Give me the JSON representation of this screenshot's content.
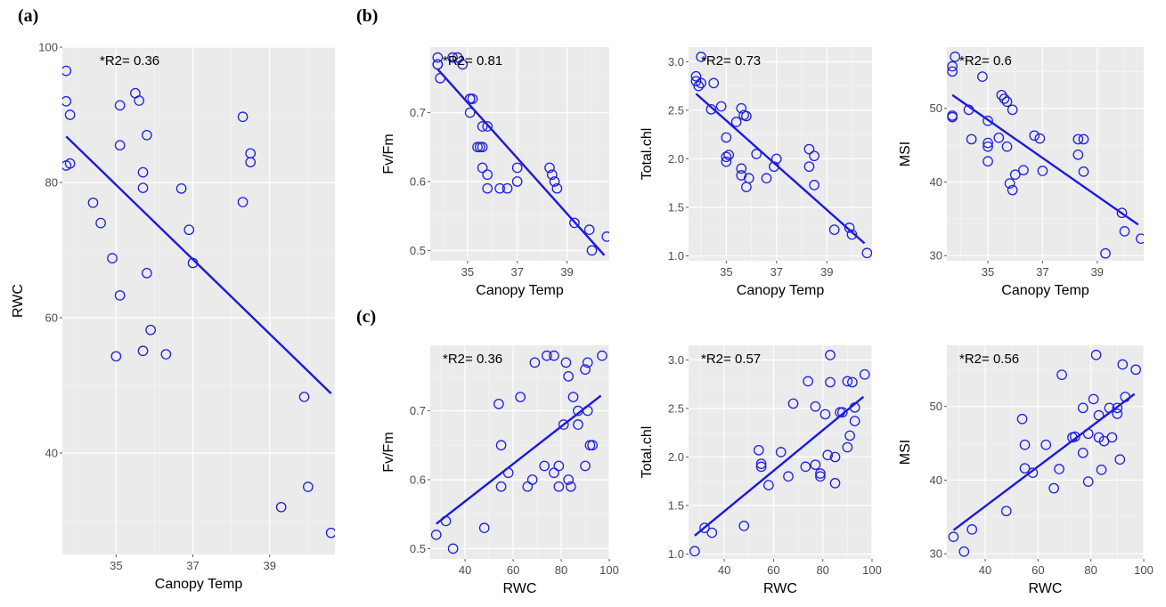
{
  "panel_labels": [
    "(a)",
    "(b)",
    "(c)"
  ],
  "style": {
    "point_color": "#2020dd",
    "line_color": "#1a1ae0",
    "panel_bg": "#ebebeb"
  },
  "chart_data": [
    {
      "id": "a",
      "type": "scatter",
      "xlabel": "Canopy Temp",
      "ylabel": "RWC",
      "annotation": "*R2= 0.36",
      "xlim": [
        33.6,
        40.7
      ],
      "ylim": [
        25,
        100
      ],
      "xticks": [
        35,
        37,
        39
      ],
      "yticks": [
        40,
        60,
        80,
        100
      ],
      "points": [
        [
          33.7,
          96.5
        ],
        [
          33.7,
          92
        ],
        [
          33.8,
          90
        ],
        [
          33.7,
          82.5
        ],
        [
          33.8,
          82.8
        ],
        [
          34.4,
          77
        ],
        [
          34.6,
          74
        ],
        [
          34.9,
          68.8
        ],
        [
          35.1,
          91.4
        ],
        [
          35.1,
          85.5
        ],
        [
          35.1,
          63.3
        ],
        [
          35.0,
          54.3
        ],
        [
          35.5,
          93.2
        ],
        [
          35.6,
          92.1
        ],
        [
          35.7,
          81.5
        ],
        [
          35.7,
          79.2
        ],
        [
          35.8,
          87
        ],
        [
          35.8,
          66.6
        ],
        [
          35.9,
          58.2
        ],
        [
          35.7,
          55.1
        ],
        [
          36.3,
          54.6
        ],
        [
          36.7,
          79.1
        ],
        [
          36.9,
          73
        ],
        [
          37.0,
          68.1
        ],
        [
          38.3,
          89.7
        ],
        [
          38.3,
          77.1
        ],
        [
          38.5,
          84.3
        ],
        [
          38.5,
          83
        ],
        [
          39.3,
          32
        ],
        [
          39.9,
          48.3
        ],
        [
          40.0,
          35
        ],
        [
          40.6,
          28.2
        ]
      ],
      "fit": [
        [
          33.7,
          86.8
        ],
        [
          40.6,
          48.8
        ]
      ]
    },
    {
      "id": "b1",
      "type": "scatter",
      "xlabel": "Canopy Temp",
      "ylabel": "Fv/Fm",
      "annotation": "*R2= 0.81",
      "xlim": [
        33.5,
        40.7
      ],
      "ylim": [
        0.485,
        0.795
      ],
      "xticks": [
        35,
        37,
        39
      ],
      "yticks": [
        0.5,
        0.6,
        0.7
      ],
      "points": [
        [
          33.8,
          0.78
        ],
        [
          33.8,
          0.77
        ],
        [
          33.8,
          0.77
        ],
        [
          33.9,
          0.75
        ],
        [
          34.4,
          0.78
        ],
        [
          34.6,
          0.78
        ],
        [
          34.8,
          0.77
        ],
        [
          35.1,
          0.72
        ],
        [
          35.1,
          0.72
        ],
        [
          35.1,
          0.7
        ],
        [
          35.2,
          0.72
        ],
        [
          35.4,
          0.65
        ],
        [
          35.5,
          0.65
        ],
        [
          35.6,
          0.65
        ],
        [
          35.6,
          0.68
        ],
        [
          35.6,
          0.62
        ],
        [
          35.8,
          0.68
        ],
        [
          35.8,
          0.61
        ],
        [
          35.8,
          0.59
        ],
        [
          36.3,
          0.59
        ],
        [
          36.6,
          0.59
        ],
        [
          37.0,
          0.62
        ],
        [
          37.0,
          0.6
        ],
        [
          38.3,
          0.62
        ],
        [
          38.4,
          0.61
        ],
        [
          38.5,
          0.6
        ],
        [
          38.6,
          0.59
        ],
        [
          39.3,
          0.54
        ],
        [
          39.9,
          0.53
        ],
        [
          40.0,
          0.5
        ],
        [
          40.6,
          0.52
        ]
      ],
      "fit": [
        [
          33.8,
          0.763
        ],
        [
          40.5,
          0.493
        ]
      ]
    },
    {
      "id": "b2",
      "type": "scatter",
      "xlabel": "Canopy Temp",
      "ylabel": "Total.chl",
      "annotation": "*R2= 0.73",
      "xlim": [
        33.5,
        40.8
      ],
      "ylim": [
        0.95,
        3.15
      ],
      "xticks": [
        35,
        37,
        39
      ],
      "yticks": [
        1.0,
        1.5,
        2.0,
        2.5,
        3.0
      ],
      "points": [
        [
          33.8,
          2.85
        ],
        [
          33.8,
          2.8
        ],
        [
          33.9,
          2.75
        ],
        [
          34.0,
          3.05
        ],
        [
          34.0,
          2.78
        ],
        [
          34.4,
          2.51
        ],
        [
          34.5,
          2.78
        ],
        [
          34.8,
          2.54
        ],
        [
          35.0,
          2.22
        ],
        [
          35.0,
          2.02
        ],
        [
          35.0,
          1.97
        ],
        [
          35.1,
          2.04
        ],
        [
          35.4,
          2.38
        ],
        [
          35.6,
          2.52
        ],
        [
          35.6,
          1.9
        ],
        [
          35.6,
          1.83
        ],
        [
          35.7,
          2.45
        ],
        [
          35.8,
          2.44
        ],
        [
          35.8,
          1.71
        ],
        [
          35.9,
          1.8
        ],
        [
          36.2,
          2.05
        ],
        [
          36.6,
          1.8
        ],
        [
          36.9,
          1.92
        ],
        [
          37.0,
          2.0
        ],
        [
          38.3,
          2.1
        ],
        [
          38.3,
          1.92
        ],
        [
          38.5,
          2.03
        ],
        [
          38.5,
          1.73
        ],
        [
          39.3,
          1.27
        ],
        [
          39.9,
          1.29
        ],
        [
          40.0,
          1.22
        ],
        [
          40.6,
          1.03
        ]
      ],
      "fit": [
        [
          33.8,
          2.67
        ],
        [
          40.5,
          1.13
        ]
      ]
    },
    {
      "id": "b3",
      "type": "scatter",
      "xlabel": "Canopy Temp",
      "ylabel": "MSI",
      "annotation": "*R2= 0.6",
      "xlim": [
        33.5,
        40.7
      ],
      "ylim": [
        29.3,
        58.3
      ],
      "xticks": [
        35,
        37,
        39
      ],
      "yticks": [
        30,
        40,
        50
      ],
      "points": [
        [
          33.7,
          55.7
        ],
        [
          33.7,
          55
        ],
        [
          33.8,
          57
        ],
        [
          33.7,
          49
        ],
        [
          33.7,
          48.8
        ],
        [
          34.3,
          49.8
        ],
        [
          34.4,
          45.8
        ],
        [
          34.8,
          54.3
        ],
        [
          35.0,
          48.3
        ],
        [
          35.0,
          45.3
        ],
        [
          35.0,
          44.8
        ],
        [
          35.0,
          42.8
        ],
        [
          35.4,
          46
        ],
        [
          35.5,
          51.8
        ],
        [
          35.6,
          51.3
        ],
        [
          35.7,
          50.9
        ],
        [
          35.7,
          44.8
        ],
        [
          35.8,
          39.8
        ],
        [
          35.9,
          38.9
        ],
        [
          35.9,
          49.8
        ],
        [
          36.0,
          41
        ],
        [
          36.3,
          41.6
        ],
        [
          36.7,
          46.3
        ],
        [
          37.0,
          41.5
        ],
        [
          36.9,
          45.9
        ],
        [
          38.3,
          43.7
        ],
        [
          38.3,
          45.8
        ],
        [
          38.5,
          45.8
        ],
        [
          38.5,
          41.4
        ],
        [
          39.3,
          30.3
        ],
        [
          39.9,
          35.8
        ],
        [
          40.0,
          33.3
        ],
        [
          40.6,
          32.3
        ]
      ],
      "fit": [
        [
          33.7,
          51.8
        ],
        [
          40.5,
          34.2
        ]
      ]
    },
    {
      "id": "c1",
      "type": "scatter",
      "xlabel": "RWC",
      "ylabel": "Fv/Fm",
      "annotation": "*R2= 0.36",
      "xlim": [
        25.5,
        100
      ],
      "ylim": [
        0.485,
        0.795
      ],
      "xticks": [
        40,
        60,
        80,
        100
      ],
      "yticks": [
        0.5,
        0.6,
        0.7
      ],
      "points": [
        [
          28,
          0.52
        ],
        [
          32,
          0.54
        ],
        [
          35,
          0.5
        ],
        [
          48,
          0.53
        ],
        [
          54,
          0.71
        ],
        [
          55,
          0.65
        ],
        [
          55,
          0.59
        ],
        [
          58,
          0.61
        ],
        [
          63,
          0.72
        ],
        [
          66,
          0.59
        ],
        [
          68,
          0.6
        ],
        [
          69,
          0.77
        ],
        [
          73,
          0.62
        ],
        [
          74,
          0.78
        ],
        [
          77,
          0.78
        ],
        [
          77,
          0.61
        ],
        [
          79,
          0.62
        ],
        [
          79,
          0.59
        ],
        [
          81,
          0.68
        ],
        [
          82,
          0.77
        ],
        [
          83,
          0.75
        ],
        [
          83,
          0.6
        ],
        [
          84,
          0.59
        ],
        [
          85,
          0.72
        ],
        [
          87,
          0.7
        ],
        [
          87,
          0.68
        ],
        [
          90,
          0.62
        ],
        [
          90,
          0.76
        ],
        [
          91,
          0.7
        ],
        [
          91,
          0.77
        ],
        [
          92,
          0.65
        ],
        [
          93,
          0.65
        ],
        [
          97,
          0.78
        ]
      ],
      "fit": [
        [
          28,
          0.536
        ],
        [
          96.5,
          0.722
        ]
      ]
    },
    {
      "id": "c2",
      "type": "scatter",
      "xlabel": "RWC",
      "ylabel": "Total.chl",
      "annotation": "*R2= 0.57",
      "xlim": [
        25.5,
        100
      ],
      "ylim": [
        0.95,
        3.15
      ],
      "xticks": [
        40,
        60,
        80,
        100
      ],
      "yticks": [
        1.0,
        1.5,
        2.0,
        2.5,
        3.0
      ],
      "points": [
        [
          28,
          1.03
        ],
        [
          32,
          1.27
        ],
        [
          35,
          1.22
        ],
        [
          48,
          1.29
        ],
        [
          54,
          2.07
        ],
        [
          55,
          1.93
        ],
        [
          55,
          1.9
        ],
        [
          58,
          1.71
        ],
        [
          63,
          2.05
        ],
        [
          66,
          1.8
        ],
        [
          68,
          2.55
        ],
        [
          73,
          1.9
        ],
        [
          74,
          2.78
        ],
        [
          77,
          2.52
        ],
        [
          77,
          1.92
        ],
        [
          79,
          1.83
        ],
        [
          79,
          1.8
        ],
        [
          81,
          2.44
        ],
        [
          82,
          2.02
        ],
        [
          83,
          3.05
        ],
        [
          83,
          2.77
        ],
        [
          85,
          1.73
        ],
        [
          85,
          2.0
        ],
        [
          87,
          2.46
        ],
        [
          88,
          2.46
        ],
        [
          90,
          2.1
        ],
        [
          90,
          2.78
        ],
        [
          91,
          2.22
        ],
        [
          92,
          2.77
        ],
        [
          93,
          2.51
        ],
        [
          93,
          2.37
        ],
        [
          97,
          2.85
        ]
      ],
      "fit": [
        [
          28,
          1.19
        ],
        [
          96.5,
          2.62
        ]
      ]
    },
    {
      "id": "c3",
      "type": "scatter",
      "xlabel": "RWC",
      "ylabel": "MSI",
      "annotation": "*R2= 0.56",
      "xlim": [
        25.5,
        100
      ],
      "ylim": [
        29.3,
        58.3
      ],
      "xticks": [
        40,
        60,
        80,
        100
      ],
      "yticks": [
        30,
        40,
        50
      ],
      "points": [
        [
          28,
          32.3
        ],
        [
          32,
          30.3
        ],
        [
          35,
          33.3
        ],
        [
          48,
          35.8
        ],
        [
          54,
          48.3
        ],
        [
          55,
          44.8
        ],
        [
          55,
          41.6
        ],
        [
          58,
          41
        ],
        [
          63,
          44.8
        ],
        [
          66,
          38.9
        ],
        [
          68,
          41.5
        ],
        [
          69,
          54.3
        ],
        [
          73,
          45.8
        ],
        [
          74,
          45.9
        ],
        [
          77,
          49.8
        ],
        [
          77,
          43.7
        ],
        [
          79,
          46.3
        ],
        [
          79,
          39.8
        ],
        [
          81,
          51
        ],
        [
          82,
          57
        ],
        [
          83,
          45.8
        ],
        [
          83,
          48.8
        ],
        [
          84,
          41.4
        ],
        [
          85,
          45.3
        ],
        [
          87,
          49.8
        ],
        [
          88,
          45.8
        ],
        [
          90,
          49
        ],
        [
          90,
          49.8
        ],
        [
          91,
          42.8
        ],
        [
          92,
          55.7
        ],
        [
          93,
          51.3
        ],
        [
          97,
          55
        ]
      ],
      "fit": [
        [
          28,
          33.2
        ],
        [
          96.5,
          51.7
        ]
      ]
    }
  ]
}
